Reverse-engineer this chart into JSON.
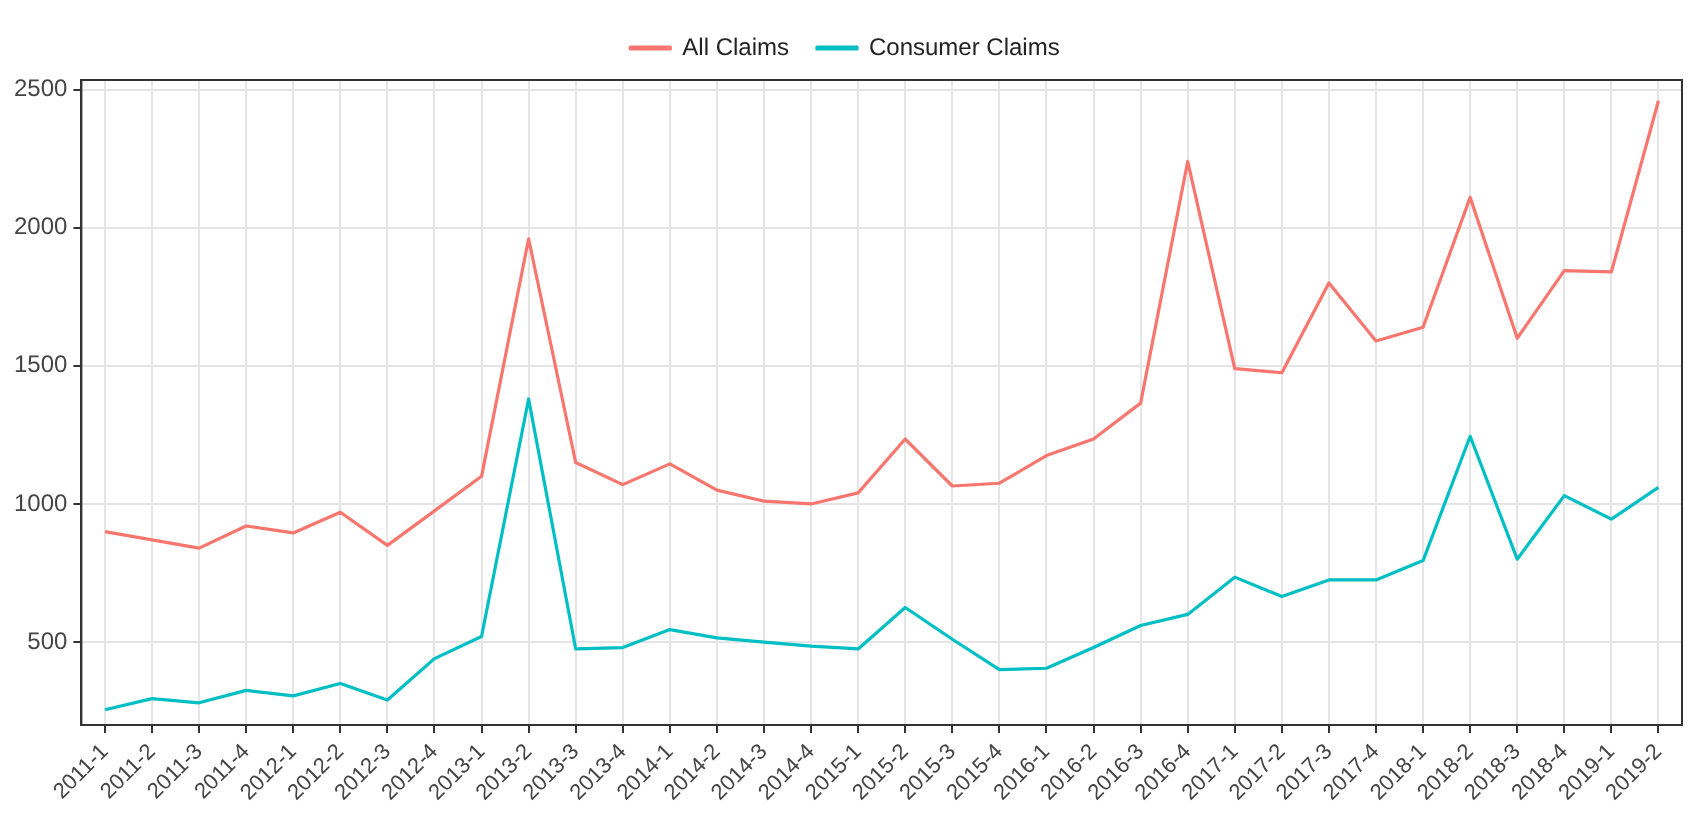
{
  "chart_data": {
    "type": "line",
    "categories": [
      "2011-1",
      "2011-2",
      "2011-3",
      "2011-4",
      "2012-1",
      "2012-2",
      "2012-3",
      "2012-4",
      "2013-1",
      "2013-2",
      "2013-3",
      "2013-4",
      "2014-1",
      "2014-2",
      "2014-3",
      "2014-4",
      "2015-1",
      "2015-2",
      "2015-3",
      "2015-4",
      "2016-1",
      "2016-2",
      "2016-3",
      "2016-4",
      "2017-1",
      "2017-2",
      "2017-3",
      "2017-4",
      "2018-1",
      "2018-2",
      "2018-3",
      "2018-4",
      "2019-1",
      "2019-2"
    ],
    "series": [
      {
        "name": "All Claims",
        "color": "#f8766d",
        "values": [
          900,
          870,
          840,
          920,
          895,
          970,
          850,
          975,
          1100,
          1960,
          1150,
          1070,
          1145,
          1050,
          1010,
          1000,
          1040,
          1235,
          1065,
          1075,
          1175,
          1235,
          1365,
          2240,
          1490,
          1475,
          1800,
          1590,
          1640,
          2110,
          1600,
          1845,
          1840,
          2460
        ]
      },
      {
        "name": "Consumer Claims",
        "color": "#00bfc4",
        "values": [
          255,
          295,
          280,
          325,
          305,
          350,
          290,
          440,
          520,
          1380,
          475,
          480,
          545,
          515,
          500,
          485,
          475,
          625,
          510,
          400,
          405,
          480,
          560,
          600,
          735,
          665,
          725,
          725,
          795,
          1245,
          800,
          1030,
          945,
          1060
        ]
      }
    ],
    "ylim": [
      200,
      2535
    ],
    "yticks": [
      500,
      1000,
      1500,
      2000,
      2500
    ],
    "grid": true,
    "legend": "top",
    "marker": "none",
    "line_style": "solid"
  }
}
